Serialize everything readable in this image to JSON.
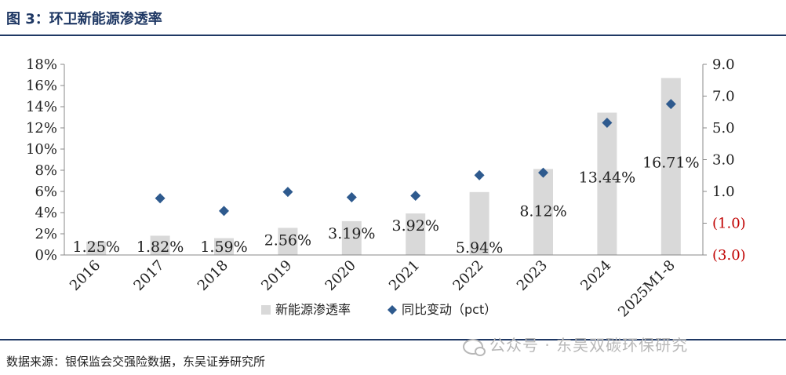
{
  "figure": {
    "title": "图 3：环卫新能源渗透率",
    "source": "数据来源：银保监会交强险数据，东吴证券研究所",
    "watermark": "公众号 · 东吴双碳环保研究"
  },
  "colors": {
    "title": "#1f3864",
    "bar": "#d9d9d9",
    "marker": "#2e5a8e",
    "negative_tick": "#c00000"
  },
  "chart_data": {
    "type": "bar",
    "categories": [
      "2016",
      "2017",
      "2018",
      "2019",
      "2020",
      "2021",
      "2022",
      "2023",
      "2024",
      "2025M1-8"
    ],
    "series": [
      {
        "name": "新能源渗透率",
        "type": "bar",
        "axis": "left",
        "values": [
          1.25,
          1.82,
          1.59,
          2.56,
          3.19,
          3.92,
          5.94,
          8.12,
          13.44,
          16.71
        ],
        "data_labels": [
          "1.25%",
          "1.82%",
          "1.59%",
          "2.56%",
          "3.19%",
          "3.92%",
          "5.94%",
          "8.12%",
          "13.44%",
          "16.71%"
        ]
      },
      {
        "name": "同比变动（pct）",
        "type": "scatter",
        "axis": "right",
        "values": [
          null,
          0.57,
          -0.23,
          0.97,
          0.63,
          0.73,
          2.02,
          2.18,
          5.32,
          6.5
        ]
      }
    ],
    "y_left": {
      "ylim": [
        0,
        18
      ],
      "ticks": [
        "0%",
        "2%",
        "4%",
        "6%",
        "8%",
        "10%",
        "12%",
        "14%",
        "16%",
        "18%"
      ]
    },
    "y_right": {
      "ylim": [
        -3,
        9
      ],
      "ticks": [
        "(3.0)",
        "(1.0)",
        "1.0",
        "3.0",
        "5.0",
        "7.0",
        "9.0"
      ]
    },
    "legend_position": "bottom",
    "grid": false
  }
}
